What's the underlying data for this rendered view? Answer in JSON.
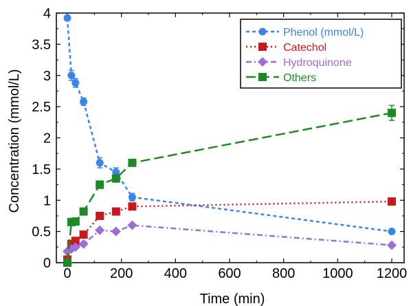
{
  "chart_data": {
    "type": "line",
    "title": "",
    "xlabel": "Time (min)",
    "ylabel": "Concentration (mmol/L)",
    "xlim": [
      0,
      1200
    ],
    "ylim": [
      0,
      4
    ],
    "x_ticks": [
      0,
      200,
      400,
      600,
      800,
      1000,
      1200
    ],
    "y_ticks": [
      0,
      0.5,
      1,
      1.5,
      2,
      2.5,
      3,
      3.5,
      4
    ],
    "grid": false,
    "legend_position": "top-right",
    "series": [
      {
        "name": "Phenol (mmol/L)",
        "color": "#3a86e8",
        "marker": "circle",
        "line_style": "dashed",
        "points": [
          [
            0,
            3.92
          ],
          [
            15,
            3.0
          ],
          [
            30,
            2.88
          ],
          [
            60,
            2.58
          ],
          [
            120,
            1.6
          ],
          [
            180,
            1.45
          ],
          [
            240,
            1.05
          ],
          [
            1200,
            0.5
          ]
        ],
        "errors": [
          0.04,
          0.08,
          0.07,
          0.06,
          0.08,
          0.07,
          0.06,
          0.03
        ]
      },
      {
        "name": "Catechol",
        "color": "#c8191e",
        "marker": "square",
        "line_style": "dotted",
        "points": [
          [
            0,
            0.05
          ],
          [
            15,
            0.3
          ],
          [
            30,
            0.35
          ],
          [
            60,
            0.45
          ],
          [
            120,
            0.75
          ],
          [
            180,
            0.82
          ],
          [
            240,
            0.9
          ],
          [
            1200,
            0.98
          ]
        ],
        "errors": [
          0.02,
          0.02,
          0.02,
          0.02,
          0.03,
          0.03,
          0.03,
          0.03
        ]
      },
      {
        "name": "Hydroquinone",
        "color": "#9b6fd4",
        "marker": "diamond",
        "line_style": "dashdot",
        "points": [
          [
            0,
            0.18
          ],
          [
            15,
            0.22
          ],
          [
            30,
            0.25
          ],
          [
            60,
            0.3
          ],
          [
            120,
            0.52
          ],
          [
            180,
            0.5
          ],
          [
            240,
            0.6
          ],
          [
            1200,
            0.28
          ]
        ],
        "errors": [
          0.02,
          0.02,
          0.02,
          0.02,
          0.03,
          0.03,
          0.03,
          0.02
        ]
      },
      {
        "name": "Others",
        "color": "#1e8a26",
        "marker": "square",
        "line_style": "longdash",
        "points": [
          [
            0,
            0.0
          ],
          [
            15,
            0.65
          ],
          [
            30,
            0.66
          ],
          [
            60,
            0.82
          ],
          [
            120,
            1.25
          ],
          [
            180,
            1.35
          ],
          [
            240,
            1.6
          ],
          [
            1200,
            2.4
          ]
        ],
        "errors": [
          0.02,
          0.03,
          0.03,
          0.04,
          0.06,
          0.06,
          0.05,
          0.12
        ]
      }
    ]
  }
}
